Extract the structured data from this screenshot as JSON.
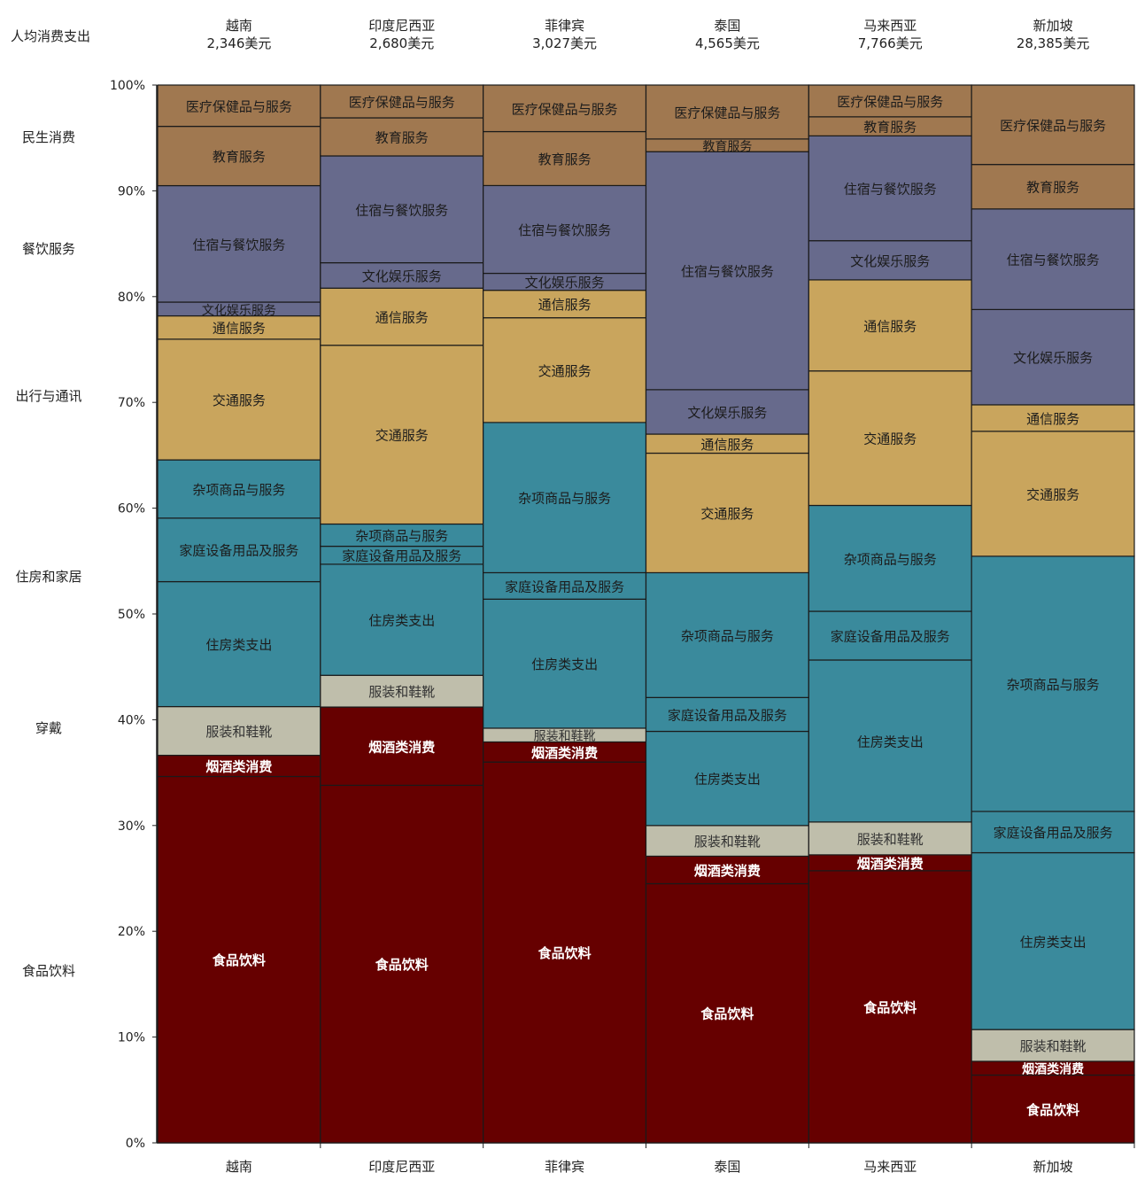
{
  "chart_data": {
    "type": "bar",
    "stacked": "100%",
    "title": "",
    "header_label": "人均消费支出",
    "categories": [
      "越南",
      "印度尼西亚",
      "菲律宾",
      "泰国",
      "马来西亚",
      "新加坡"
    ],
    "per_capita_spending": [
      "2,346美元",
      "2,680美元",
      "3,027美元",
      "4,565美元",
      "7,766美元",
      "28,385美元"
    ],
    "ylim": [
      0,
      100
    ],
    "yticks": [
      "0%",
      "10%",
      "20%",
      "30%",
      "40%",
      "50%",
      "60%",
      "70%",
      "80%",
      "90%",
      "100%"
    ],
    "group_labels": [
      "民生消费",
      "餐饮服务",
      "出行与通讯",
      "住房和家居",
      "穿戴",
      "食品饮料"
    ],
    "series": [
      {
        "name": "食品饮料",
        "color": "#660000",
        "label_color": "#ffffff",
        "values": [
          34.6,
          33.8,
          36.0,
          24.5,
          25.7,
          6.4
        ]
      },
      {
        "name": "烟酒类消费",
        "color": "#660000",
        "label_color": "#ffffff",
        "values": [
          2.0,
          7.4,
          1.9,
          2.6,
          1.5,
          1.3
        ]
      },
      {
        "name": "服装和鞋靴",
        "color": "#bfbeab",
        "label_color": "#333333",
        "values": [
          4.6,
          3.0,
          1.3,
          2.9,
          3.1,
          3.0
        ]
      },
      {
        "name": "住房类支出",
        "color": "#3a8a9c",
        "label_color": "#1c1c1c",
        "values": [
          11.8,
          10.5,
          12.2,
          8.9,
          15.3,
          16.7
        ]
      },
      {
        "name": "家庭设备用品及服务",
        "color": "#3a8a9c",
        "label_color": "#1c1c1c",
        "values": [
          6.0,
          1.7,
          2.5,
          3.2,
          4.6,
          3.9
        ]
      },
      {
        "name": "杂项商品与服务",
        "color": "#3a8a9c",
        "label_color": "#1c1c1c",
        "values": [
          5.5,
          2.1,
          14.2,
          11.8,
          10.0,
          24.1
        ]
      },
      {
        "name": "交通服务",
        "color": "#c9a55d",
        "label_color": "#1c1c1c",
        "values": [
          11.4,
          16.9,
          9.9,
          11.3,
          12.7,
          11.8
        ]
      },
      {
        "name": "通信服务",
        "color": "#c9a55d",
        "label_color": "#1c1c1c",
        "values": [
          2.2,
          5.4,
          2.6,
          1.8,
          8.6,
          2.5
        ]
      },
      {
        "name": "文化娱乐服务",
        "color": "#676a8c",
        "label_color": "#1c1c1c",
        "values": [
          1.3,
          2.4,
          1.6,
          4.2,
          3.7,
          9.0
        ]
      },
      {
        "name": "住宿与餐饮服务",
        "color": "#676a8c",
        "label_color": "#1c1c1c",
        "values": [
          11.0,
          10.1,
          8.3,
          22.5,
          9.9,
          9.5
        ]
      },
      {
        "name": "教育服务",
        "color": "#a07850",
        "label_color": "#1c1c1c",
        "values": [
          5.6,
          3.6,
          5.1,
          1.2,
          1.8,
          4.2
        ]
      },
      {
        "name": "医疗保健品与服务",
        "color": "#a07850",
        "label_color": "#1c1c1c",
        "values": [
          3.9,
          3.1,
          4.4,
          5.1,
          3.0,
          7.5
        ]
      }
    ]
  }
}
